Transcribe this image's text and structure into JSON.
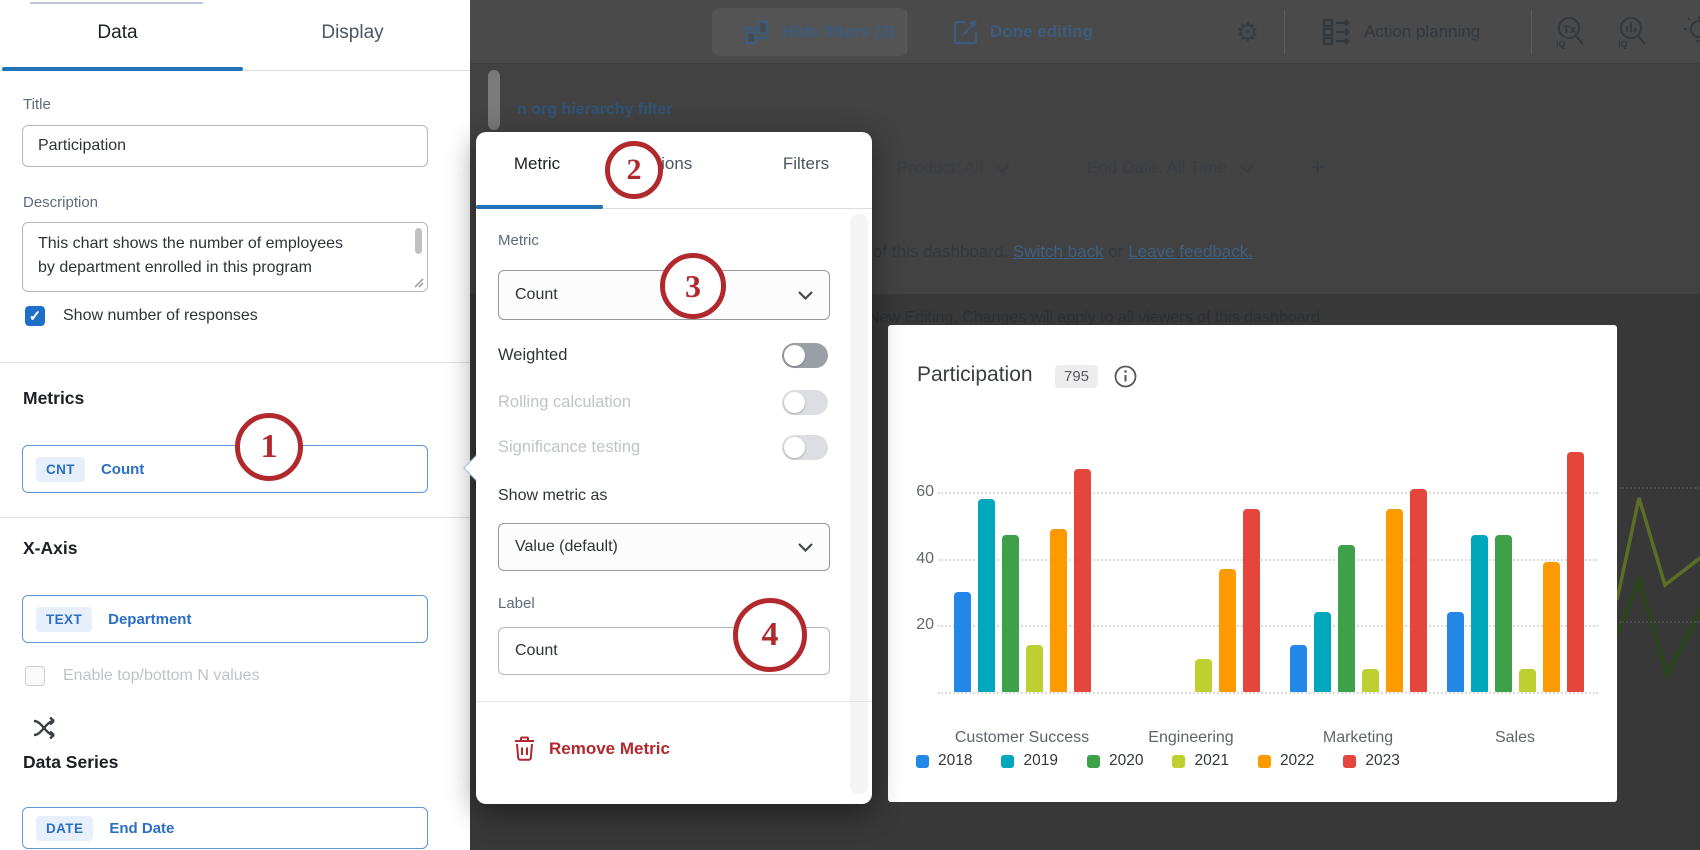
{
  "panel": {
    "tabs": {
      "data": "Data",
      "display": "Display"
    },
    "title_label": "Title",
    "title_value": "Participation",
    "description_label": "Description",
    "description_line1": "This chart shows the number of employees",
    "description_line2": "by department enrolled in this program",
    "show_responses_label": "Show number of responses",
    "metrics_heading": "Metrics",
    "metric_chip": {
      "badge": "CNT",
      "label": "Count"
    },
    "xaxis_heading": "X-Axis",
    "xaxis_chip": {
      "badge": "TEXT",
      "label": "Department"
    },
    "topbottom_label": "Enable top/bottom N values",
    "dataseries_heading": "Data Series",
    "dataseries_chip": {
      "badge": "DATE",
      "label": "End Date"
    }
  },
  "toolbar": {
    "hide_filters": "Hide filters (3)",
    "done_editing": "Done editing",
    "action_planning": "Action planning",
    "gear_glyph": "⚙"
  },
  "dashboard": {
    "org_filter_link": "n org hierarchy filter",
    "product_filter": "Product: All",
    "end_date_filter": "End Date: All Time",
    "add_filter": "+",
    "banner_prefix": "of this dashboard.",
    "switch_back_link": "Switch back",
    "banner_or": "or",
    "leave_feedback_link": "Leave feedback.",
    "editing_notice": "New Editing. Changes will apply to all viewers of this dashboard"
  },
  "popup": {
    "tabs": {
      "metric": "Metric",
      "options": "Options",
      "filters": "Filters"
    },
    "metric_label": "Metric",
    "metric_value": "Count",
    "weighted_label": "Weighted",
    "rolling_label": "Rolling calculation",
    "significance_label": "Significance testing",
    "show_metric_as_label": "Show metric as",
    "show_metric_as_value": "Value (default)",
    "label_label": "Label",
    "label_value": "Count",
    "remove_metric": "Remove Metric"
  },
  "annotations": {
    "c1": "1",
    "c2": "2",
    "c3": "3",
    "c4": "4"
  },
  "widget": {
    "title": "Participation",
    "badge": "795"
  },
  "chart_data": {
    "type": "bar",
    "title": "Participation",
    "categories": [
      "Customer Success",
      "Engineering",
      "Marketing",
      "Sales"
    ],
    "series": [
      {
        "name": "2018",
        "color": "#2287e6",
        "values": [
          30,
          null,
          14,
          24
        ]
      },
      {
        "name": "2019",
        "color": "#00a7bd",
        "values": [
          58,
          null,
          24,
          47
        ]
      },
      {
        "name": "2020",
        "color": "#3ea149",
        "values": [
          47,
          null,
          44,
          47
        ]
      },
      {
        "name": "2021",
        "color": "#bdd02f",
        "values": [
          14,
          10,
          7,
          7
        ]
      },
      {
        "name": "2022",
        "color": "#fd9a00",
        "values": [
          49,
          37,
          55,
          39
        ]
      },
      {
        "name": "2023",
        "color": "#e5463c",
        "values": [
          67,
          55,
          61,
          72
        ]
      }
    ],
    "xlabel": "",
    "ylabel": "",
    "yticks": [
      20,
      40,
      60
    ],
    "ylim": [
      0,
      75
    ],
    "grid": "dotted-horizontal",
    "legend_position": "bottom"
  }
}
